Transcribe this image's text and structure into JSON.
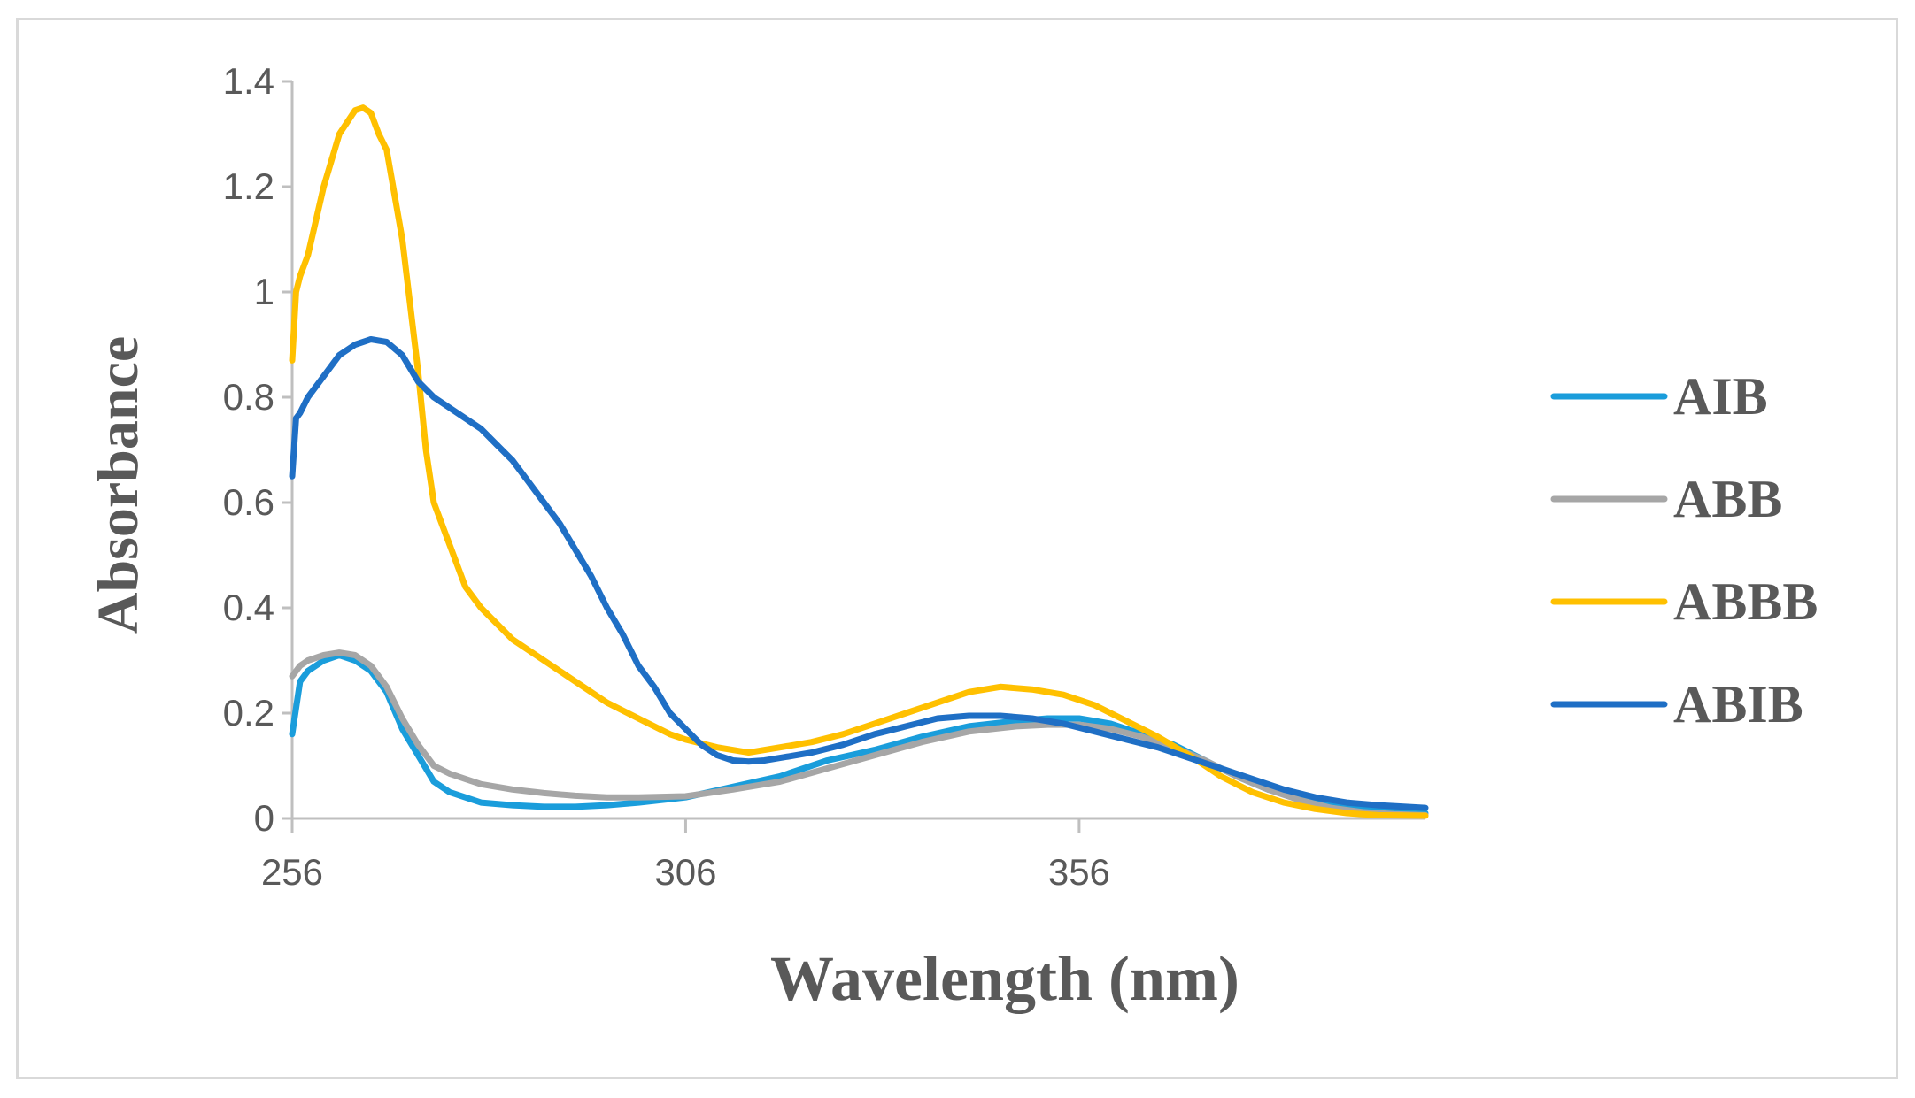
{
  "chart_data": {
    "type": "line",
    "title": "",
    "xlabel": "Wavelength (nm)",
    "ylabel": "Absorbance",
    "xlim": [
      256,
      400
    ],
    "ylim": [
      0,
      1.4
    ],
    "xticks": [
      256,
      306,
      356
    ],
    "xtick_labels": [
      "256",
      "306",
      "356"
    ],
    "yticks": [
      0,
      0.2,
      0.4,
      0.6,
      0.8,
      1,
      1.2,
      1.4
    ],
    "ytick_labels": [
      "0",
      "0.2",
      "0.4",
      "0.6",
      "0.8",
      "1",
      "1.2",
      "1.4"
    ],
    "grid": false,
    "legend_position": "right",
    "series": [
      {
        "name": "AIB",
        "color": "#1a9ddb",
        "x": [
          256,
          257,
          258,
          260,
          262,
          264,
          266,
          268,
          270,
          272,
          274,
          276,
          278,
          280,
          284,
          288,
          292,
          296,
          300,
          306,
          312,
          318,
          324,
          330,
          336,
          342,
          348,
          352,
          356,
          360,
          364,
          368,
          372,
          376,
          380,
          384,
          388,
          392,
          396,
          400
        ],
        "y": [
          0.16,
          0.26,
          0.28,
          0.3,
          0.31,
          0.3,
          0.28,
          0.24,
          0.17,
          0.12,
          0.07,
          0.05,
          0.04,
          0.03,
          0.025,
          0.022,
          0.022,
          0.025,
          0.03,
          0.04,
          0.06,
          0.08,
          0.11,
          0.13,
          0.155,
          0.175,
          0.185,
          0.19,
          0.19,
          0.18,
          0.16,
          0.14,
          0.11,
          0.08,
          0.055,
          0.04,
          0.03,
          0.02,
          0.012,
          0.01
        ]
      },
      {
        "name": "ABB",
        "color": "#a6a6a6",
        "x": [
          256,
          257,
          258,
          260,
          262,
          264,
          266,
          268,
          270,
          272,
          274,
          276,
          278,
          280,
          284,
          288,
          292,
          296,
          300,
          306,
          312,
          318,
          324,
          330,
          336,
          342,
          348,
          352,
          356,
          360,
          364,
          368,
          372,
          376,
          380,
          384,
          388,
          392,
          396,
          400
        ],
        "y": [
          0.27,
          0.29,
          0.3,
          0.31,
          0.315,
          0.31,
          0.29,
          0.25,
          0.19,
          0.14,
          0.1,
          0.085,
          0.075,
          0.065,
          0.055,
          0.048,
          0.043,
          0.04,
          0.04,
          0.042,
          0.055,
          0.07,
          0.095,
          0.12,
          0.145,
          0.165,
          0.175,
          0.178,
          0.178,
          0.17,
          0.155,
          0.135,
          0.11,
          0.08,
          0.055,
          0.035,
          0.02,
          0.012,
          0.008,
          0.006
        ]
      },
      {
        "name": "ABBB",
        "color": "#ffc000",
        "x": [
          256,
          256.5,
          257,
          258,
          260,
          262,
          264,
          265,
          266,
          267,
          268,
          270,
          272,
          273,
          274,
          276,
          278,
          280,
          284,
          288,
          292,
          296,
          300,
          304,
          306,
          310,
          314,
          318,
          322,
          326,
          330,
          334,
          338,
          342,
          346,
          350,
          354,
          358,
          362,
          366,
          370,
          374,
          378,
          382,
          386,
          390,
          394,
          400
        ],
        "y": [
          0.87,
          1.0,
          1.03,
          1.07,
          1.2,
          1.3,
          1.345,
          1.35,
          1.34,
          1.3,
          1.27,
          1.1,
          0.85,
          0.7,
          0.6,
          0.52,
          0.44,
          0.4,
          0.34,
          0.3,
          0.26,
          0.22,
          0.19,
          0.16,
          0.15,
          0.135,
          0.125,
          0.135,
          0.145,
          0.16,
          0.18,
          0.2,
          0.22,
          0.24,
          0.25,
          0.245,
          0.235,
          0.215,
          0.185,
          0.155,
          0.12,
          0.08,
          0.05,
          0.03,
          0.018,
          0.01,
          0.006,
          0.005
        ]
      },
      {
        "name": "ABIB",
        "color": "#1f6fc5",
        "x": [
          256,
          256.5,
          257,
          258,
          260,
          262,
          264,
          266,
          268,
          270,
          272,
          274,
          276,
          278,
          280,
          282,
          284,
          286,
          288,
          290,
          292,
          294,
          296,
          298,
          300,
          302,
          304,
          306,
          308,
          310,
          312,
          314,
          316,
          318,
          322,
          326,
          330,
          334,
          338,
          342,
          346,
          350,
          354,
          358,
          362,
          366,
          370,
          374,
          378,
          382,
          386,
          390,
          394,
          400
        ],
        "y": [
          0.65,
          0.76,
          0.77,
          0.8,
          0.84,
          0.88,
          0.9,
          0.91,
          0.905,
          0.88,
          0.83,
          0.8,
          0.78,
          0.76,
          0.74,
          0.71,
          0.68,
          0.64,
          0.6,
          0.56,
          0.51,
          0.46,
          0.4,
          0.35,
          0.29,
          0.25,
          0.2,
          0.17,
          0.14,
          0.12,
          0.11,
          0.108,
          0.11,
          0.115,
          0.125,
          0.14,
          0.16,
          0.175,
          0.19,
          0.195,
          0.195,
          0.19,
          0.18,
          0.165,
          0.15,
          0.135,
          0.115,
          0.095,
          0.075,
          0.055,
          0.04,
          0.03,
          0.025,
          0.02
        ]
      }
    ]
  }
}
